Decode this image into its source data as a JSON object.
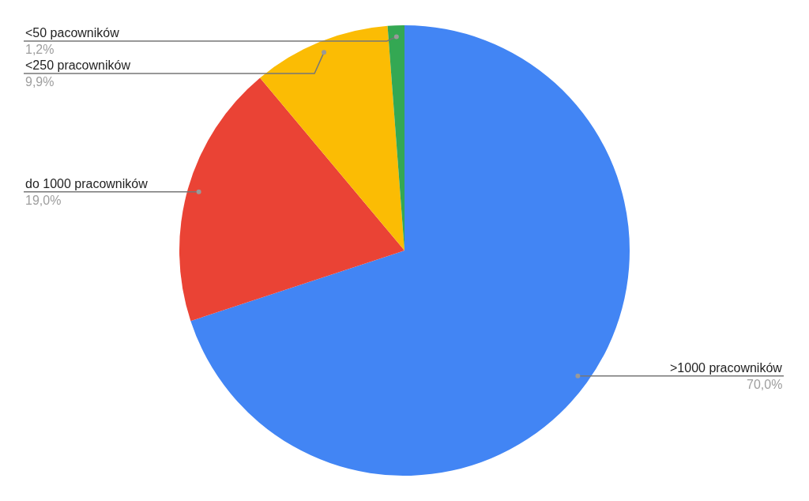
{
  "chart_data": {
    "type": "pie",
    "categories": [
      ">1000 pracowników",
      "do 1000 pracowników",
      "<250 pracowników",
      "<50 pacowników"
    ],
    "values": [
      70.0,
      19.0,
      9.9,
      1.2
    ],
    "value_labels": [
      "70,0%",
      "19,0%",
      "9,9%",
      "1,2%"
    ],
    "colors": [
      "#4285f4",
      "#ea4335",
      "#fbbc04",
      "#34a853"
    ],
    "legend": false
  }
}
